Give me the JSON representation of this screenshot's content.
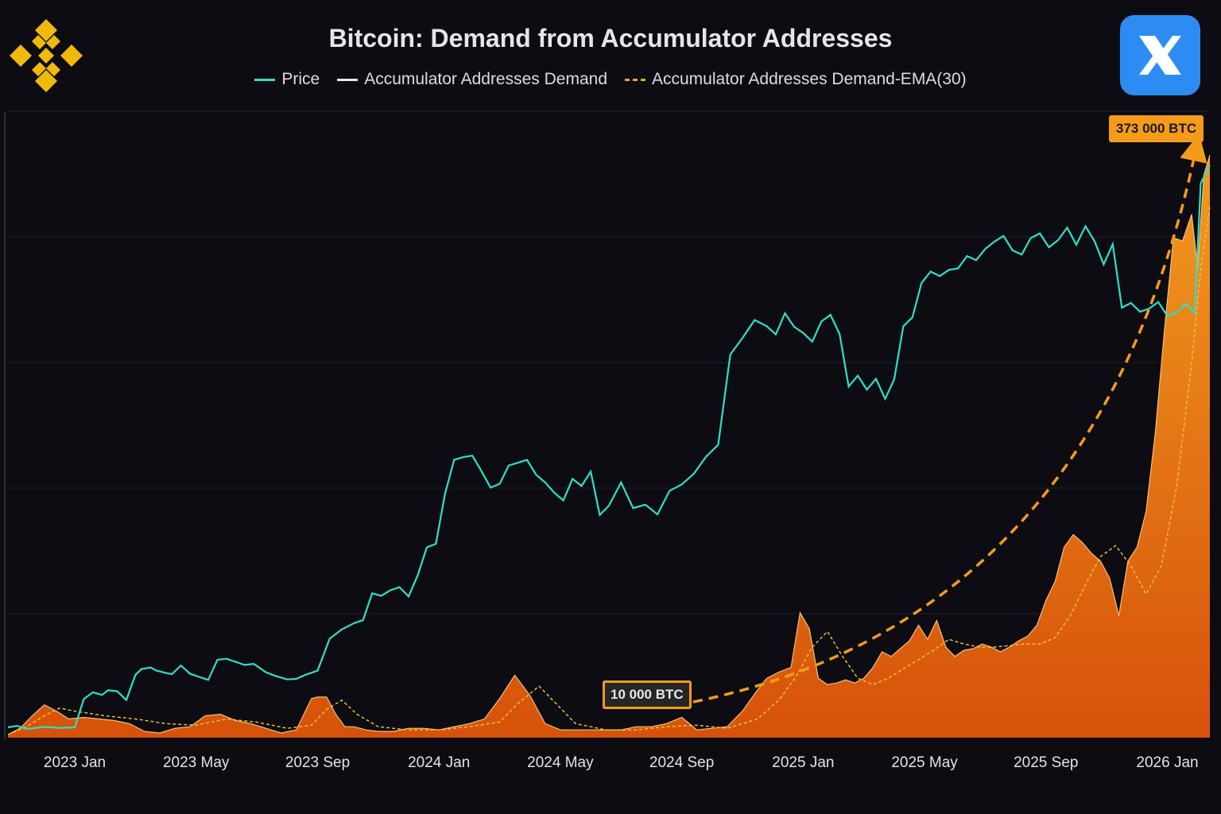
{
  "title": "Bitcoin: Demand from Accumulator Addresses",
  "colors": {
    "background": "#0c0c12",
    "price": "#2ee0c8",
    "demand": "#e8e8ea",
    "ema": "#f5a623",
    "fill_top": "#f08a1a",
    "fill_bottom": "#d9530a",
    "accent": "#f59b1a"
  },
  "icons": {
    "brand_logo": "binance-logo-icon",
    "badge": "x-logo-icon"
  },
  "legend": [
    {
      "label": "Price",
      "style": "solid",
      "color": "#2ee0c8"
    },
    {
      "label": "Accumulator Addresses Demand",
      "style": "solid",
      "color": "#e8e8ea"
    },
    {
      "label": "Accumulator Addresses Demand-EMA(30)",
      "style": "dashed",
      "color": "#f5a623"
    }
  ],
  "annotations": {
    "start_label": "10 000 BTC",
    "end_label": "373 000 BTC"
  },
  "chart_data": {
    "type": "area",
    "title": "Bitcoin: Demand from Accumulator Addresses",
    "xlabel": "",
    "ylabel": "",
    "x_ticks": [
      "2023 Jan",
      "2023 May",
      "2023 Sep",
      "2024 Jan",
      "2024 May",
      "2024 Sep",
      "2025 Jan",
      "2025 May",
      "2025 Sep",
      "2026 Jan"
    ],
    "x_tick_positions_months": [
      0,
      4,
      8,
      12,
      16,
      20,
      24,
      28,
      32,
      36
    ],
    "xlim_months": [
      -2.2,
      37.4
    ],
    "demand_unit": "BTC",
    "demand_ylim": [
      0,
      400000
    ],
    "series": [
      {
        "name": "Price",
        "axis": "right",
        "ylim": [
          15000,
          130000
        ],
        "x_months": [
          -2.2,
          -1.9,
          -1.6,
          -1.4,
          -1.0,
          -0.5,
          0,
          0.3,
          0.6,
          0.9,
          1.1,
          1.4,
          1.7,
          2.0,
          2.2,
          2.5,
          2.7,
          2.9,
          3.2,
          3.5,
          3.8,
          4.1,
          4.4,
          4.7,
          5.0,
          5.3,
          5.6,
          5.9,
          6.3,
          6.6,
          7.0,
          7.3,
          7.6,
          8.0,
          8.4,
          8.8,
          9.2,
          9.5,
          9.8,
          10.1,
          10.4,
          10.7,
          11.0,
          11.3,
          11.6,
          11.9,
          12.2,
          12.5,
          12.8,
          13.1,
          13.4,
          13.7,
          14.0,
          14.3,
          14.6,
          14.9,
          15.2,
          15.5,
          15.8,
          16.1,
          16.4,
          16.7,
          17.0,
          17.3,
          17.6,
          18.0,
          18.4,
          18.8,
          19.2,
          19.6,
          20.0,
          20.4,
          20.8,
          21.2,
          21.6,
          22.0,
          22.4,
          22.8,
          23.1,
          23.4,
          23.7,
          24.0,
          24.3,
          24.6,
          24.9,
          25.2,
          25.5,
          25.8,
          26.1,
          26.4,
          26.7,
          27.0,
          27.3,
          27.6,
          27.9,
          28.2,
          28.5,
          28.8,
          29.1,
          29.4,
          29.7,
          30.0,
          30.3,
          30.6,
          30.9,
          31.2,
          31.5,
          31.8,
          32.1,
          32.4,
          32.7,
          33.0,
          33.3,
          33.6,
          33.9,
          34.2,
          34.5,
          34.8,
          35.1,
          35.4,
          35.7,
          36.0,
          36.3,
          36.6,
          36.9,
          37.1,
          37.4
        ],
        "values": [
          17000,
          17300,
          16700,
          16800,
          17100,
          16900,
          17000,
          22500,
          23800,
          23300,
          24200,
          24000,
          22300,
          27200,
          28300,
          28600,
          28000,
          27700,
          27300,
          29000,
          27400,
          26800,
          26200,
          30100,
          30300,
          29700,
          29100,
          29300,
          27700,
          27000,
          26300,
          26400,
          27200,
          28000,
          34200,
          36000,
          37200,
          37800,
          43000,
          42500,
          43600,
          44200,
          42400,
          46500,
          51900,
          52600,
          62300,
          68900,
          69400,
          69700,
          66700,
          63500,
          64200,
          67800,
          68300,
          68900,
          66000,
          64500,
          62500,
          61000,
          65200,
          63800,
          66600,
          58200,
          60000,
          64500,
          59500,
          60200,
          58300,
          62900,
          64100,
          66200,
          69500,
          71800,
          89300,
          92500,
          96000,
          94800,
          93200,
          97300,
          94700,
          93500,
          91800,
          95700,
          97000,
          93300,
          83100,
          85200,
          82500,
          84600,
          80700,
          84500,
          94800,
          96500,
          103200,
          105400,
          104500,
          105700,
          106000,
          108400,
          107600,
          109800,
          111200,
          112300,
          109500,
          108700,
          111900,
          112800,
          110100,
          111500,
          113900,
          110600,
          114200,
          111300,
          106800,
          110700,
          98400,
          99300,
          97600,
          98200,
          99500,
          96800,
          97400,
          99200,
          97300,
          122500,
          126000
        ]
      },
      {
        "name": "Accumulator Addresses Demand",
        "axis": "left",
        "x_months": [
          -2.2,
          -1.8,
          -1.4,
          -1.0,
          -0.6,
          -0.2,
          0.3,
          0.8,
          1.3,
          1.8,
          2.3,
          2.8,
          3.3,
          3.8,
          4.3,
          4.8,
          5.3,
          5.8,
          6.3,
          6.8,
          7.3,
          7.8,
          8.0,
          8.3,
          8.6,
          8.9,
          9.2,
          9.6,
          10.0,
          10.5,
          11.0,
          11.5,
          12.0,
          12.5,
          13.0,
          13.5,
          14.0,
          14.5,
          15.0,
          15.5,
          16.0,
          16.5,
          17.0,
          17.5,
          18.0,
          18.5,
          19.0,
          19.5,
          20.0,
          20.5,
          21.0,
          21.5,
          22.0,
          22.4,
          22.8,
          23.2,
          23.6,
          23.9,
          24.2,
          24.5,
          24.8,
          25.1,
          25.4,
          25.7,
          26.0,
          26.3,
          26.6,
          26.9,
          27.2,
          27.5,
          27.8,
          28.1,
          28.4,
          28.7,
          29.0,
          29.3,
          29.6,
          29.9,
          30.2,
          30.5,
          30.8,
          31.1,
          31.4,
          31.7,
          32.0,
          32.3,
          32.6,
          32.9,
          33.2,
          33.5,
          33.8,
          34.1,
          34.4,
          34.7,
          35.0,
          35.3,
          35.6,
          35.9,
          36.2,
          36.5,
          36.8,
          37.0,
          37.2,
          37.4
        ],
        "values": [
          2000,
          6000,
          14000,
          21000,
          17000,
          12000,
          13000,
          12000,
          11000,
          9000,
          4000,
          3000,
          6000,
          7000,
          14000,
          15000,
          11000,
          9000,
          6000,
          3000,
          5000,
          25000,
          26000,
          26000,
          15000,
          7000,
          7000,
          5000,
          4000,
          4000,
          6000,
          6000,
          5000,
          7000,
          9000,
          12000,
          25000,
          40000,
          27000,
          9000,
          5000,
          5000,
          5000,
          5000,
          5000,
          7000,
          7000,
          9000,
          13000,
          5000,
          6000,
          7000,
          17000,
          28000,
          38000,
          42000,
          45000,
          80000,
          70000,
          38000,
          34000,
          35000,
          37000,
          35000,
          38000,
          45000,
          55000,
          52000,
          57000,
          62000,
          72000,
          63000,
          75000,
          58000,
          52000,
          56000,
          57000,
          60000,
          58000,
          55000,
          58000,
          62000,
          65000,
          72000,
          88000,
          100000,
          122000,
          130000,
          125000,
          118000,
          113000,
          102000,
          78000,
          113000,
          122000,
          145000,
          195000,
          260000,
          320000,
          318000,
          335000,
          300000,
          360000,
          373000
        ]
      },
      {
        "name": "Accumulator Addresses Demand-EMA(30)",
        "axis": "left",
        "x_months": [
          -2.2,
          -1.6,
          -1.0,
          -0.5,
          0,
          1,
          2,
          3,
          4,
          5,
          6,
          7,
          7.8,
          8.3,
          8.8,
          9.3,
          10,
          11,
          12,
          13,
          14,
          14.6,
          15.3,
          15.8,
          16.5,
          17.5,
          18.5,
          19.5,
          20.5,
          21.5,
          22.5,
          23.2,
          23.8,
          24.3,
          24.8,
          25.3,
          25.8,
          26.3,
          26.8,
          27.3,
          27.8,
          28.3,
          28.8,
          29.3,
          29.8,
          30.3,
          30.8,
          31.3,
          31.8,
          32.3,
          32.8,
          33.3,
          33.8,
          34.3,
          34.8,
          35.3,
          35.8,
          36.3,
          36.8,
          37.1,
          37.4
        ],
        "values": [
          2000,
          7000,
          14000,
          19000,
          17000,
          14000,
          12000,
          9000,
          8000,
          12000,
          10000,
          6000,
          8000,
          18000,
          24000,
          15000,
          7000,
          5000,
          5000,
          7000,
          10000,
          22000,
          33000,
          23000,
          9000,
          5000,
          5000,
          7000,
          8000,
          6000,
          12000,
          24000,
          40000,
          58000,
          68000,
          52000,
          38000,
          34000,
          38000,
          44000,
          50000,
          56000,
          63000,
          60000,
          58000,
          58000,
          59000,
          60000,
          60000,
          64000,
          78000,
          98000,
          116000,
          123000,
          110000,
          92000,
          110000,
          160000,
          240000,
          300000,
          340000
        ]
      }
    ]
  }
}
